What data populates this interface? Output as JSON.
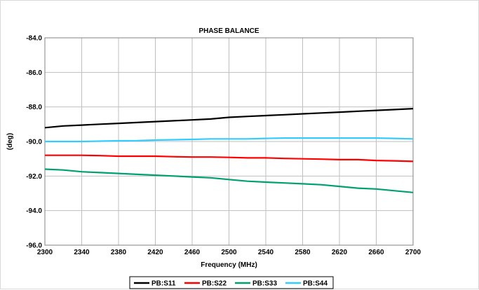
{
  "chart_data": {
    "type": "line",
    "title": "PHASE BALANCE",
    "xlabel": "Frequency (MHz)",
    "ylabel": "(deg)",
    "xlim": [
      2300,
      2700
    ],
    "ylim": [
      -96.0,
      -84.0
    ],
    "x_ticks": [
      2300,
      2340,
      2380,
      2420,
      2460,
      2500,
      2540,
      2580,
      2620,
      2660,
      2700
    ],
    "y_ticks": [
      -84.0,
      -86.0,
      -88.0,
      -90.0,
      -92.0,
      -94.0,
      -96.0
    ],
    "x_tick_labels": [
      "2300",
      "2340",
      "2380",
      "2420",
      "2460",
      "2500",
      "2540",
      "2580",
      "2620",
      "2660",
      "2700"
    ],
    "y_tick_labels": [
      "-84.0",
      "-86.0",
      "-88.0",
      "-90.0",
      "-92.0",
      "-94.0",
      "-96.0"
    ],
    "grid": true,
    "legend_position": "bottom",
    "x": [
      2300,
      2320,
      2340,
      2360,
      2380,
      2400,
      2420,
      2440,
      2460,
      2480,
      2500,
      2520,
      2540,
      2560,
      2580,
      2600,
      2620,
      2640,
      2660,
      2680,
      2700
    ],
    "series": [
      {
        "name": "PB:S11",
        "color": "#000000",
        "values": [
          -89.2,
          -89.1,
          -89.05,
          -89.0,
          -88.95,
          -88.9,
          -88.85,
          -88.8,
          -88.75,
          -88.7,
          -88.6,
          -88.55,
          -88.5,
          -88.45,
          -88.4,
          -88.35,
          -88.3,
          -88.25,
          -88.2,
          -88.15,
          -88.1
        ]
      },
      {
        "name": "PB:S22",
        "color": "#ff0000",
        "values": [
          -90.8,
          -90.8,
          -90.8,
          -90.82,
          -90.85,
          -90.85,
          -90.85,
          -90.88,
          -90.9,
          -90.9,
          -90.92,
          -90.95,
          -90.95,
          -90.98,
          -91.0,
          -91.02,
          -91.05,
          -91.05,
          -91.1,
          -91.12,
          -91.15
        ]
      },
      {
        "name": "PB:S33",
        "color": "#00a070",
        "values": [
          -91.6,
          -91.65,
          -91.75,
          -91.8,
          -91.85,
          -91.9,
          -91.95,
          -92.0,
          -92.05,
          -92.1,
          -92.2,
          -92.3,
          -92.35,
          -92.4,
          -92.45,
          -92.5,
          -92.6,
          -92.7,
          -92.75,
          -92.85,
          -92.95
        ]
      },
      {
        "name": "PB:S44",
        "color": "#33ccff",
        "values": [
          -90.0,
          -90.0,
          -90.0,
          -89.98,
          -89.96,
          -89.95,
          -89.92,
          -89.9,
          -89.88,
          -89.85,
          -89.85,
          -89.85,
          -89.82,
          -89.8,
          -89.8,
          -89.8,
          -89.8,
          -89.8,
          -89.8,
          -89.82,
          -89.85
        ]
      }
    ]
  }
}
